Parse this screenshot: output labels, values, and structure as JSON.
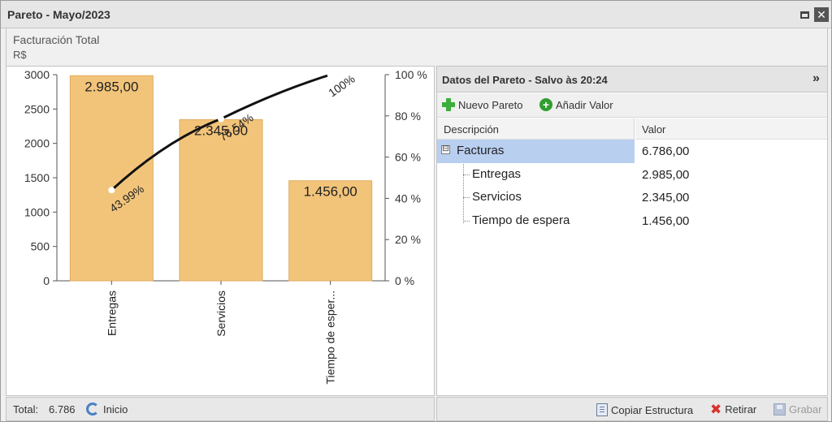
{
  "window": {
    "title": "Pareto - Mayo/2023"
  },
  "subheader": {
    "title": "Facturación Total",
    "unit": "R$"
  },
  "chart_data": {
    "type": "bar",
    "categories": [
      "Entregas",
      "Servicios",
      "Tiempo de esper..."
    ],
    "values": [
      2985,
      2345,
      1456
    ],
    "value_labels": [
      "2.985,00",
      "2.345,00",
      "1.456,00"
    ],
    "cumulative_percent": [
      43.99,
      78.54,
      100
    ],
    "cumulative_labels": [
      "43.99%",
      "78.54%",
      "100%"
    ],
    "ylim": [
      0,
      3000
    ],
    "y_ticks": [
      "0",
      "500",
      "1000",
      "1500",
      "2000",
      "2500",
      "3000"
    ],
    "y2lim": [
      0,
      100
    ],
    "y2_ticks": [
      "0 %",
      "20 %",
      "40 %",
      "60 %",
      "80 %",
      "100 %"
    ],
    "bar_color": "#f2c47a",
    "line_color": "#111111",
    "grid": false
  },
  "panel": {
    "title": "Datos del Pareto - Salvo às 20:24",
    "collapse_icon": "double-chevron-right-icon",
    "toolbar": {
      "new_label": "Nuevo Pareto",
      "add_label": "Añadir Valor"
    },
    "columns": {
      "desc": "Descripción",
      "val": "Valor"
    },
    "rows": [
      {
        "label": "Facturas",
        "value": "6.786,00"
      },
      {
        "label": "Entregas",
        "value": "2.985,00"
      },
      {
        "label": "Servicios",
        "value": "2.345,00"
      },
      {
        "label": "Tiempo de espera",
        "value": "1.456,00"
      }
    ],
    "tree_expander": "⊟",
    "selected_color": "#b9cff0"
  },
  "status": {
    "total_label": "Total:",
    "total_value": "6.786",
    "inicio_label": "Inicio",
    "copy_label": "Copiar Estructura",
    "retirar_label": "Retirar",
    "grabar_label": "Grabar"
  }
}
